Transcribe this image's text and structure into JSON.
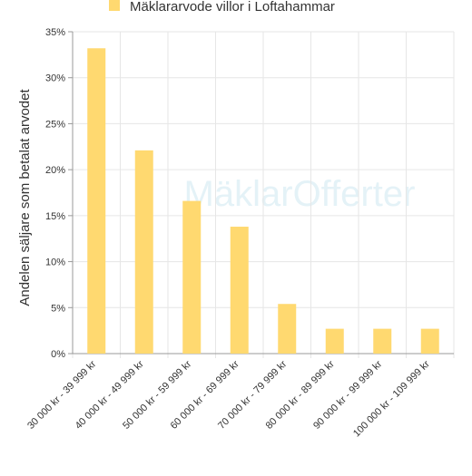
{
  "chart_data": {
    "type": "bar",
    "y_label": "Andelen säljare som betalat arvodet",
    "watermark": "MäklarOfferter",
    "categories": [
      "30 000 kr - 39 999 kr",
      "40 000 kr - 49 999 kr",
      "50 000 kr - 59 999 kr",
      "60 000 kr - 69 999 kr",
      "70 000 kr - 79 999 kr",
      "80 000 kr - 89 999 kr",
      "90 000 kr - 99 999 kr",
      "100 000 kr - 109 999 kr"
    ],
    "series": [
      {
        "name": "Mäklararvode villor i Loftahammar",
        "color": "#ffd970",
        "values": [
          33.2,
          22.1,
          16.6,
          13.8,
          5.4,
          2.7,
          2.7,
          2.7
        ]
      }
    ],
    "ylim": [
      0,
      35
    ],
    "yticks": [
      {
        "value": 0,
        "label": "0%"
      },
      {
        "value": 5,
        "label": "5%"
      },
      {
        "value": 10,
        "label": "10%"
      },
      {
        "value": 15,
        "label": "15%"
      },
      {
        "value": 20,
        "label": "20%"
      },
      {
        "value": 25,
        "label": "25%"
      },
      {
        "value": 30,
        "label": "30%"
      },
      {
        "value": 35,
        "label": "35%"
      }
    ],
    "grid": true
  }
}
